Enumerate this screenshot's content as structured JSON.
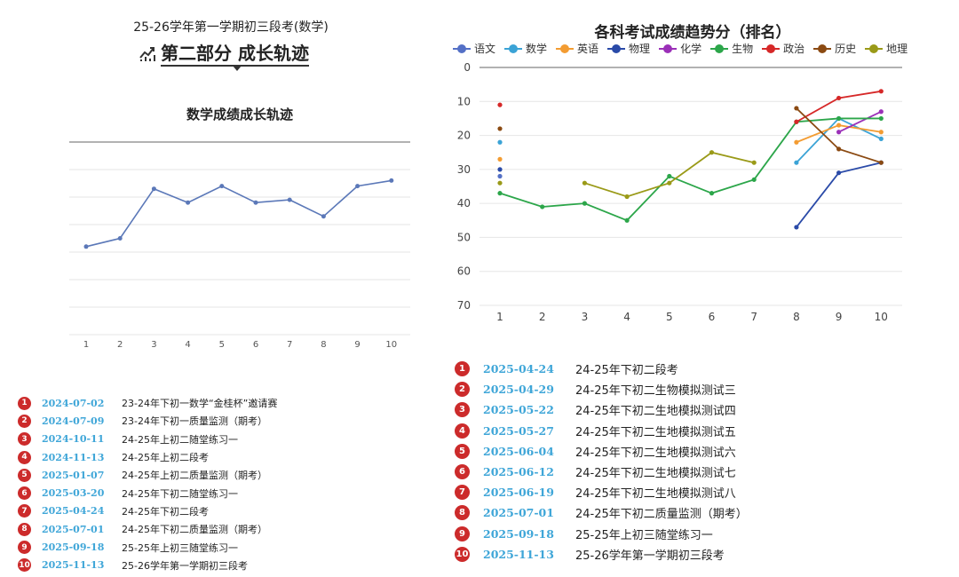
{
  "doc_title": "25-26学年第一学期初三段考(数学)",
  "section_heading": "第二部分 成长轨迹",
  "colors": {
    "badge": "#cc2b2b",
    "date": "#3fa6d8",
    "math_line": "#5b78b8"
  },
  "left_chart": {
    "title": "数学成绩成长轨迹"
  },
  "right_chart": {
    "title": "各科考试成绩趋势分（排名）"
  },
  "left_list": [
    {
      "num": "1",
      "date": "2024-07-02",
      "name": "23-24年下初一数学“金桂杯”邀请赛"
    },
    {
      "num": "2",
      "date": "2024-07-09",
      "name": "23-24年下初一质量监测（期考）"
    },
    {
      "num": "3",
      "date": "2024-10-11",
      "name": "24-25年上初二随堂练习一"
    },
    {
      "num": "4",
      "date": "2024-11-13",
      "name": "24-25年上初二段考"
    },
    {
      "num": "5",
      "date": "2025-01-07",
      "name": "24-25年上初二质量监测（期考）"
    },
    {
      "num": "6",
      "date": "2025-03-20",
      "name": "24-25年下初二随堂练习一"
    },
    {
      "num": "7",
      "date": "2025-04-24",
      "name": "24-25年下初二段考"
    },
    {
      "num": "8",
      "date": "2025-07-01",
      "name": "24-25年下初二质量监测（期考）"
    },
    {
      "num": "9",
      "date": "2025-09-18",
      "name": "25-25年上初三随堂练习一"
    },
    {
      "num": "10",
      "date": "2025-11-13",
      "name": "25-26学年第一学期初三段考"
    }
  ],
  "right_list": [
    {
      "num": "1",
      "date": "2025-04-24",
      "name": "24-25年下初二段考"
    },
    {
      "num": "2",
      "date": "2025-04-29",
      "name": "24-25年下初二生物模拟测试三"
    },
    {
      "num": "3",
      "date": "2025-05-22",
      "name": "24-25年下初二生地模拟测试四"
    },
    {
      "num": "4",
      "date": "2025-05-27",
      "name": "24-25年下初二生地模拟测试五"
    },
    {
      "num": "5",
      "date": "2025-06-04",
      "name": "24-25年下初二生地模拟测试六"
    },
    {
      "num": "6",
      "date": "2025-06-12",
      "name": "24-25年下初二生地模拟测试七"
    },
    {
      "num": "7",
      "date": "2025-06-19",
      "name": "24-25年下初二生地模拟测试八"
    },
    {
      "num": "8",
      "date": "2025-07-01",
      "name": "24-25年下初二质量监测（期考）"
    },
    {
      "num": "9",
      "date": "2025-09-18",
      "name": "25-25年上初三随堂练习一"
    },
    {
      "num": "10",
      "date": "2025-11-13",
      "name": "25-26学年第一学期初三段考"
    }
  ],
  "chart_data": [
    {
      "type": "line",
      "title": "数学成绩成长轨迹",
      "x": [
        1,
        2,
        3,
        4,
        5,
        6,
        7,
        8,
        9,
        10
      ],
      "ylim": [
        0,
        7
      ],
      "y_axis_labels_shown": false,
      "grid": true,
      "series": [
        {
          "color": "#5b78b8",
          "values": [
            3.2,
            3.5,
            5.3,
            4.8,
            5.4,
            4.8,
            4.9,
            4.3,
            5.4,
            5.6
          ]
        }
      ]
    },
    {
      "type": "line",
      "title": "各科考试成绩趋势分（排名）",
      "x": [
        1,
        2,
        3,
        4,
        5,
        6,
        7,
        8,
        9,
        10
      ],
      "yticks": [
        0,
        10,
        20,
        30,
        40,
        50,
        60,
        70
      ],
      "ylim": [
        0,
        70
      ],
      "y_inverted": true,
      "grid": true,
      "legend_position": "top",
      "series": [
        {
          "name": "语文",
          "color": "#5470c6",
          "values": [
            32,
            null,
            null,
            null,
            null,
            null,
            null,
            null,
            null,
            null
          ]
        },
        {
          "name": "数学",
          "color": "#3ba3d6",
          "values": [
            22,
            null,
            null,
            null,
            null,
            null,
            null,
            28,
            15,
            21
          ]
        },
        {
          "name": "英语",
          "color": "#f39c32",
          "values": [
            27,
            null,
            null,
            null,
            null,
            null,
            null,
            22,
            17,
            19
          ]
        },
        {
          "name": "物理",
          "color": "#2a4aa8",
          "values": [
            30,
            null,
            null,
            null,
            null,
            null,
            null,
            47,
            31,
            28
          ]
        },
        {
          "name": "化学",
          "color": "#9b30b8",
          "values": [
            null,
            null,
            null,
            null,
            null,
            null,
            null,
            null,
            19,
            13
          ]
        },
        {
          "name": "生物",
          "color": "#2ca64a",
          "values": [
            37,
            41,
            40,
            45,
            32,
            37,
            33,
            16,
            15,
            15
          ]
        },
        {
          "name": "政治",
          "color": "#d62828",
          "values": [
            11,
            null,
            null,
            null,
            null,
            null,
            null,
            16,
            9,
            7
          ]
        },
        {
          "name": "历史",
          "color": "#8b4a12",
          "values": [
            18,
            null,
            null,
            null,
            null,
            null,
            null,
            12,
            24,
            28
          ]
        },
        {
          "name": "地理",
          "color": "#9a9a18",
          "values": [
            34,
            null,
            34,
            38,
            34,
            25,
            28,
            null,
            null,
            null
          ]
        }
      ]
    }
  ]
}
